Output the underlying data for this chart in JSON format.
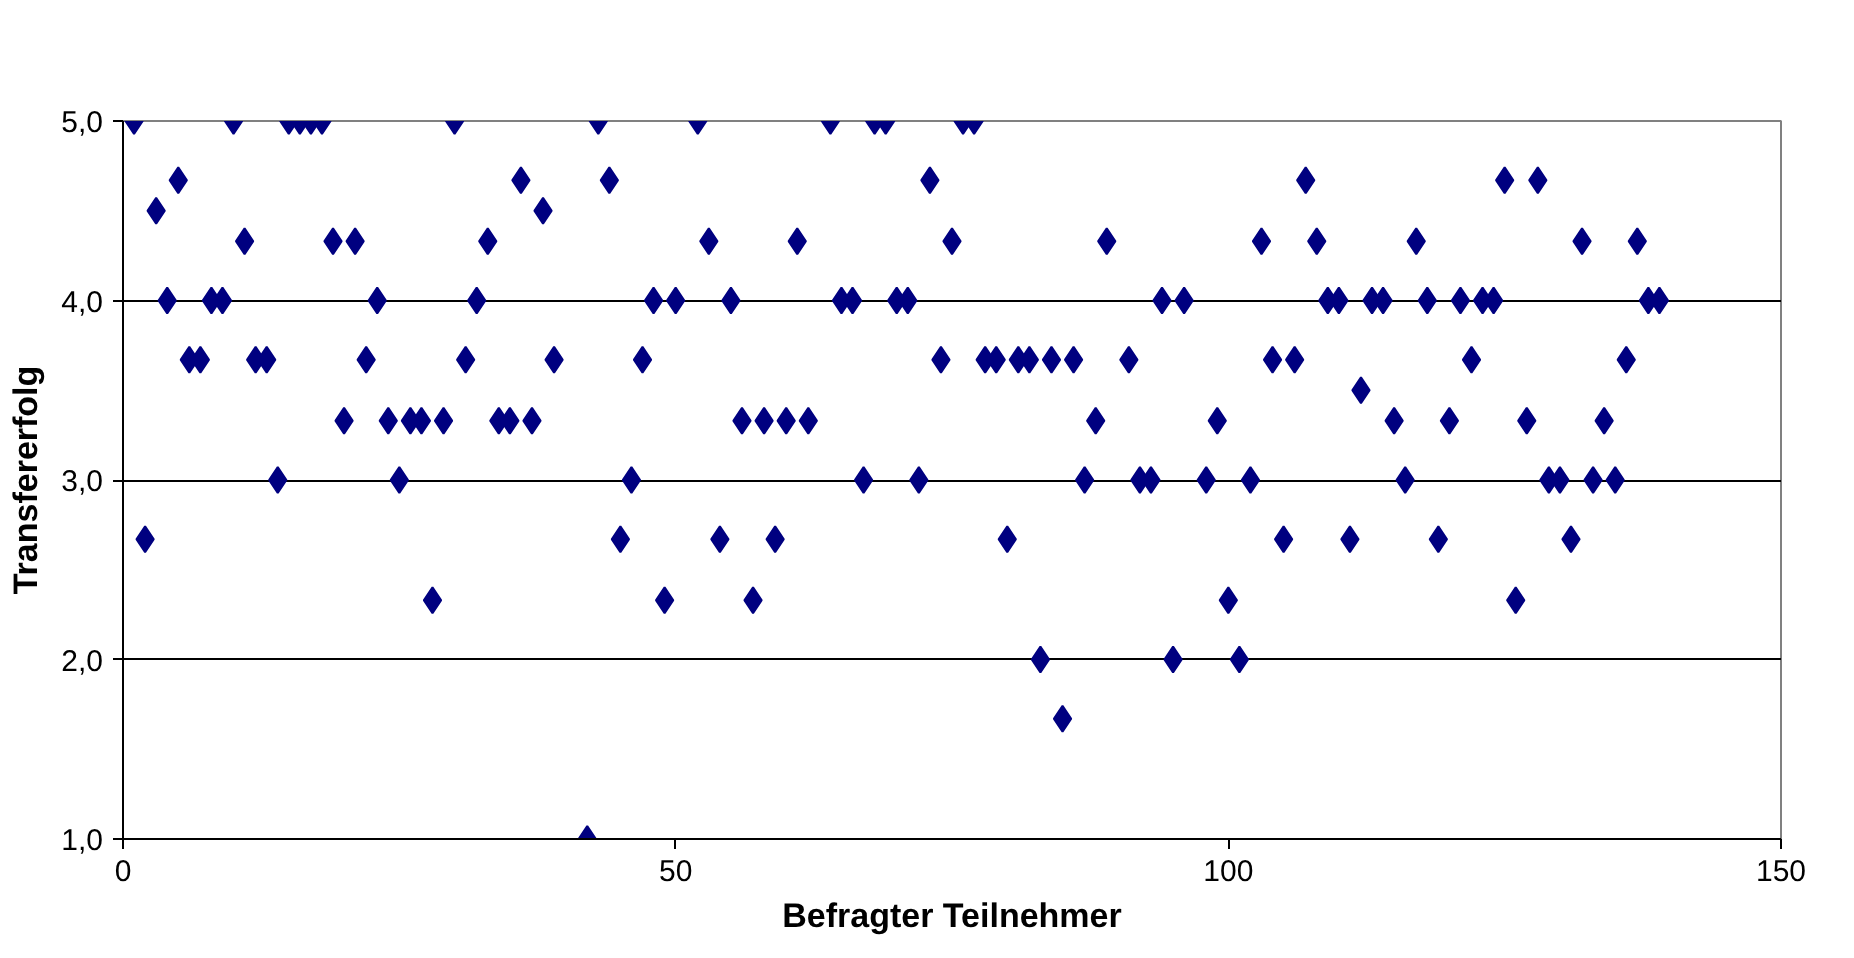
{
  "chart_data": {
    "type": "scatter",
    "xlabel": "Befragter Teilnehmer",
    "ylabel": "Transfererfolg",
    "xlim": [
      0,
      150
    ],
    "xticks": [
      0,
      50,
      100,
      150
    ],
    "ylim": [
      1,
      5
    ],
    "yticks": [
      {
        "value": 1,
        "label": "1,0"
      },
      {
        "value": 2,
        "label": "2,0"
      },
      {
        "value": 3,
        "label": "3,0"
      },
      {
        "value": 4,
        "label": "4,0"
      },
      {
        "value": 5,
        "label": "5,0"
      }
    ],
    "grid": "y",
    "marker": "diamond",
    "series": [
      {
        "color": "#000080",
        "x": [
          1,
          2,
          3,
          4,
          5,
          6,
          7,
          8,
          9,
          10,
          11,
          12,
          13,
          14,
          15,
          16,
          17,
          18,
          19,
          20,
          21,
          22,
          23,
          24,
          25,
          26,
          27,
          28,
          29,
          30,
          31,
          32,
          33,
          34,
          35,
          36,
          37,
          38,
          39,
          42,
          43,
          44,
          45,
          46,
          47,
          48,
          49,
          50,
          52,
          53,
          54,
          55,
          56,
          57,
          58,
          59,
          60,
          61,
          62,
          64,
          65,
          66,
          67,
          68,
          69,
          70,
          71,
          72,
          73,
          74,
          75,
          76,
          77,
          78,
          79,
          80,
          81,
          82,
          83,
          84,
          85,
          86,
          87,
          88,
          89,
          91,
          92,
          93,
          94,
          95,
          96,
          98,
          99,
          100,
          101,
          102,
          103,
          104,
          105,
          106,
          107,
          108,
          109,
          110,
          111,
          112,
          113,
          114,
          115,
          116,
          117,
          118,
          119,
          120,
          121,
          122,
          123,
          124,
          125,
          126,
          127,
          128,
          129,
          130,
          131,
          132,
          133,
          134,
          135,
          136,
          137,
          138,
          139
        ],
        "values": [
          5,
          2.67,
          4.5,
          4,
          4.67,
          3.67,
          3.67,
          4,
          4,
          5,
          4.33,
          3.67,
          3.67,
          3,
          5,
          5,
          5,
          5,
          4.33,
          3.33,
          4.33,
          3.67,
          4,
          3.33,
          3,
          3.33,
          3.33,
          2.33,
          3.33,
          5,
          3.67,
          4,
          4.33,
          3.33,
          3.33,
          4.67,
          3.33,
          4.5,
          3.67,
          1,
          5,
          4.67,
          2.67,
          3,
          3.67,
          4,
          2.33,
          4,
          5,
          4.33,
          2.67,
          4,
          3.33,
          2.33,
          3.33,
          2.67,
          3.33,
          4.33,
          3.33,
          5,
          4,
          4,
          3,
          5,
          5,
          4,
          4,
          3,
          4.67,
          3.67,
          4.33,
          5,
          5,
          3.67,
          3.67,
          2.67,
          3.67,
          3.67,
          2,
          3.67,
          1.67,
          3.67,
          3,
          3.33,
          4.33,
          3.67,
          3,
          3,
          4,
          2,
          4,
          3,
          3.33,
          2.33,
          2,
          3,
          4.33,
          3.67,
          2.67,
          3.67,
          4.67,
          4.33,
          4,
          4,
          2.67,
          3.5,
          4,
          4,
          3.33,
          3,
          4.33,
          4,
          2.67,
          3.33,
          4,
          3.67,
          4,
          4,
          4.67,
          2.33,
          3.33,
          4.67,
          3,
          3,
          2.67,
          4.33,
          3,
          3.33,
          3,
          3.67,
          4.33,
          4,
          4
        ]
      }
    ]
  }
}
